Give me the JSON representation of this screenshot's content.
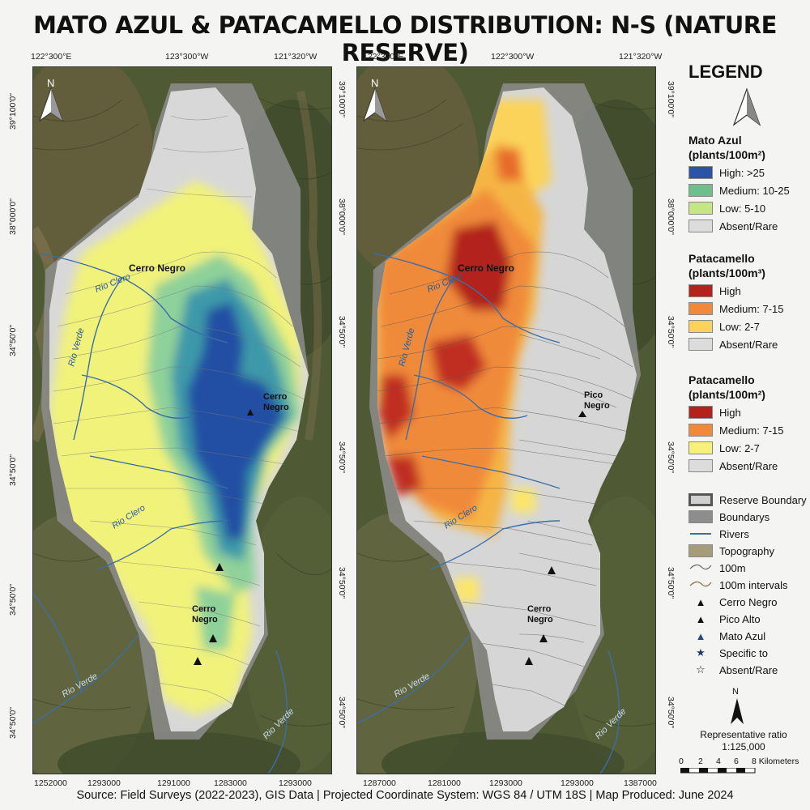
{
  "title": "MATO AZUL & PATACAMELLO DISTRIBUTION: N-S (NATURE RESERVE)",
  "left_map": {
    "top_coords": [
      "122°300°E",
      "123°300°W",
      "121°320°W"
    ],
    "bottom_coords": [
      "1252000",
      "1293000",
      "1291000",
      "1283000",
      "1293000"
    ],
    "left_coords": [
      "39°100'0\"",
      "38°000'0\"",
      "34°50'0\"",
      "34°50'0\"",
      "34°50'0\"",
      "34°50'0\""
    ],
    "right_coords": [
      "39°100'0\"",
      "38°000'0\"",
      "34°50'0\"",
      "34°50'0\"",
      "34°50'0\"",
      "34°50'0\""
    ],
    "places": [
      {
        "name": "Cerro Negro"
      },
      {
        "name": "Cerro\nNegro"
      },
      {
        "name": "Cerro\nNegro"
      }
    ],
    "rivers": [
      "Rio Clero",
      "Rio Verde",
      "Rio Clero",
      "Rio Verde",
      "Rio Verde"
    ],
    "north": "N"
  },
  "right_map": {
    "top_coords": [
      "122°300°E",
      "122°300°W",
      "121°320°W"
    ],
    "bottom_coords": [
      "1287000",
      "1281000",
      "1293000",
      "1293000",
      "1387000"
    ],
    "places": [
      {
        "name": "Cerro Negro"
      },
      {
        "name": "Pico\nNegro"
      },
      {
        "name": "Cerro\nNegro"
      }
    ],
    "rivers": [
      "Rio Clero",
      "Rio Verde",
      "Rio Clero",
      "Rio Verde",
      "Rio Verde"
    ],
    "north": "N"
  },
  "legend": {
    "title": "LEGEND",
    "sections": [
      {
        "heading": "Mato Azul\n(plants/100m²)",
        "items": [
          {
            "label": "High: >25",
            "color": "#2a55a6"
          },
          {
            "label": "Medium: 10-25",
            "color": "#6cc08e"
          },
          {
            "label": "Low: 5-10",
            "color": "#c6e684"
          },
          {
            "label": "Absent/Rare",
            "color": "#dcdcdc"
          }
        ]
      },
      {
        "heading": "Patacamello\n(plants/100m³)",
        "items": [
          {
            "label": "High",
            "color": "#b3231c"
          },
          {
            "label": "Medium: 7-15",
            "color": "#f08a3a"
          },
          {
            "label": "Low: 2-7",
            "color": "#fbd35a"
          },
          {
            "label": "Absent/Rare",
            "color": "#dcdcdc"
          }
        ]
      },
      {
        "heading": "Patacamello\n(plants/100m²)",
        "items": [
          {
            "label": "High",
            "color": "#b3231c"
          },
          {
            "label": "Medium: 7-15",
            "color": "#f08a3a"
          },
          {
            "label": "Low: 2-7",
            "color": "#f7f07a"
          },
          {
            "label": "Absent/Rare",
            "color": "#dcdcdc"
          }
        ]
      }
    ],
    "other_items": [
      {
        "label": "Reserve Boundary",
        "icon": "reserve-boundary-swatch"
      },
      {
        "label": "Boundarys",
        "icon": "boundary-swatch"
      },
      {
        "label": "Rivers",
        "icon": "river-line"
      },
      {
        "label": "Topography",
        "icon": "topography-swatch"
      },
      {
        "label": "100m",
        "icon": "contour-line"
      },
      {
        "label": "100m intervals",
        "icon": "contour-line"
      },
      {
        "label": "Cerro Negro",
        "icon": "black-triangle"
      },
      {
        "label": "Pico Alto",
        "icon": "black-triangle"
      },
      {
        "label": "Mato Azul",
        "icon": "blue-triangle"
      },
      {
        "label": "Specific to",
        "icon": "blue-star"
      },
      {
        "label": "Absent/Rare",
        "icon": "outline-star"
      }
    ],
    "north": "N",
    "scale_title": "Representative ratio",
    "scale_ratio": "1:125,000",
    "scale_ticks": [
      "0",
      "2",
      "4",
      "6",
      "8 Kilometers"
    ]
  },
  "footer": "Source: Field Surveys (2022-2023), GIS Data | Projected Coordinate System: WGS 84 / UTM 18S | Map Produced: June 2024"
}
